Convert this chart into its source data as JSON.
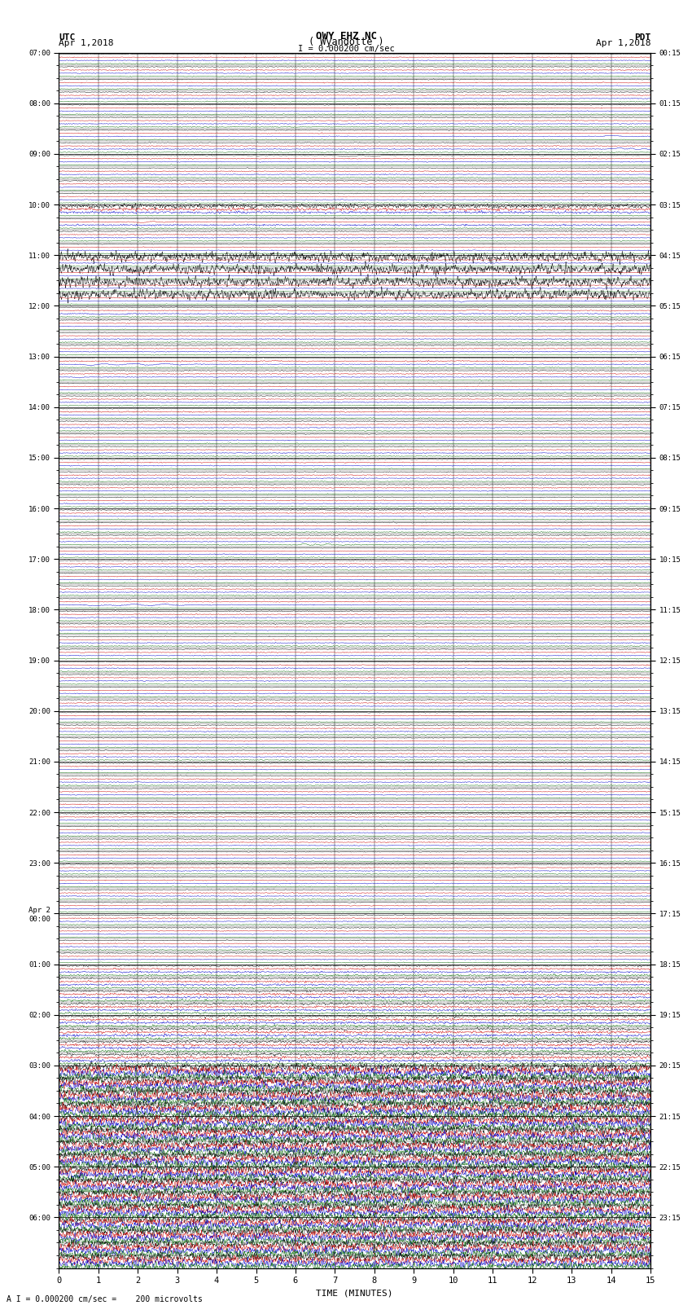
{
  "title_line1": "OWY EHZ NC",
  "title_line2": "( Wyandotte )",
  "title_scale": "I = 0.000200 cm/sec",
  "left_label_top": "UTC",
  "left_label_date": "Apr 1,2018",
  "right_label_top": "PDT",
  "right_label_date": "Apr 1,2018",
  "xlabel": "TIME (MINUTES)",
  "footnote": "A I = 0.000200 cm/sec =    200 microvolts",
  "n_rows": 96,
  "n_cols": 15,
  "background_color": "#ffffff",
  "grid_color": "#000000",
  "hour_labels_utc": [
    "07:00",
    "08:00",
    "09:00",
    "10:00",
    "11:00",
    "12:00",
    "13:00",
    "14:00",
    "15:00",
    "16:00",
    "17:00",
    "18:00",
    "19:00",
    "20:00",
    "21:00",
    "22:00",
    "23:00",
    "Apr 2\n00:00",
    "01:00",
    "02:00",
    "03:00",
    "04:00",
    "05:00",
    "06:00"
  ],
  "hour_labels_pdt": [
    "00:15",
    "01:15",
    "02:15",
    "03:15",
    "04:15",
    "05:15",
    "06:15",
    "07:15",
    "08:15",
    "09:15",
    "10:15",
    "11:15",
    "12:15",
    "13:15",
    "14:15",
    "15:15",
    "16:15",
    "17:15",
    "18:15",
    "19:15",
    "20:15",
    "21:15",
    "22:15",
    "23:15"
  ],
  "colors": {
    "black": "#000000",
    "red": "#cc0000",
    "blue": "#0000cc",
    "green": "#006600"
  },
  "channel_colors": [
    "#000000",
    "#cc0000",
    "#0000cc",
    "#006600"
  ],
  "rows_per_hour": 4,
  "channels_per_row": 4
}
